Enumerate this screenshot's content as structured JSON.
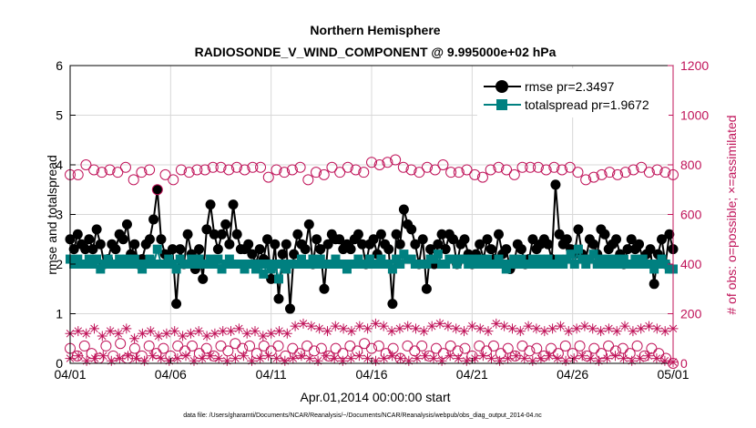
{
  "chart_data": {
    "type": "line",
    "title": "Northern Hemisphere",
    "subtitle": "RADIOSONDE_V_WIND_COMPONENT @ 9.995000e+02 hPa",
    "xlabel": "Apr.01,2014 00:00:00 start",
    "ylabel": "rmse and totalspread",
    "y2label": "# of obs: o=possible; ×=assimilated",
    "footnote": "data file: /Users/gharamti/Documents/NCAR/Reanalysis/~/Documents/NCAR/Reanalysis/webpub/obs_diag_output_2014-04.nc",
    "x_tick_labels": [
      "04/01",
      "04/06",
      "04/11",
      "04/16",
      "04/21",
      "04/26",
      "05/01"
    ],
    "x_tick_days": [
      0,
      5,
      10,
      15,
      20,
      25,
      30
    ],
    "xlim": [
      0,
      30
    ],
    "ylim": [
      0,
      6
    ],
    "y_ticks": [
      0,
      1,
      2,
      3,
      4,
      5,
      6
    ],
    "y2lim": [
      0,
      1200
    ],
    "y2_ticks": [
      0,
      200,
      400,
      600,
      800,
      1000,
      1200
    ],
    "grid": true,
    "legend_position": "top-right",
    "colors": {
      "rmse": "#000000",
      "totalspread": "#008080",
      "obs": "#c0145a",
      "axis": "#000000",
      "grid": "#d8d8d8"
    },
    "legend": [
      {
        "label": "rmse pr=2.3497",
        "marker": "circle"
      },
      {
        "label": "totalspread pr=1.9672",
        "marker": "square"
      }
    ],
    "series": [
      {
        "name": "rmse",
        "axis": "left",
        "values": [
          2.5,
          2.3,
          2.6,
          2.4,
          2.3,
          2.5,
          2.3,
          2.7,
          2.4,
          2.0,
          2.1,
          2.4,
          2.3,
          2.6,
          2.5,
          2.8,
          2.2,
          2.4,
          2.0,
          2.1,
          2.4,
          2.5,
          2.9,
          3.5,
          2.5,
          2.2,
          2.1,
          2.3,
          1.2,
          2.3,
          2.0,
          2.6,
          2.2,
          1.9,
          2.3,
          1.7,
          2.7,
          3.2,
          2.6,
          2.3,
          2.6,
          2.8,
          2.4,
          3.2,
          2.6,
          2.3,
          2.3,
          2.4,
          2.2,
          2.0,
          2.3,
          2.1,
          2.5,
          1.7,
          2.4,
          1.3,
          2.2,
          2.4,
          1.1,
          2.2,
          2.6,
          2.4,
          2.3,
          2.8,
          2.0,
          2.5,
          2.3,
          1.5,
          2.4,
          2.6,
          2.5,
          2.5,
          2.3,
          2.4,
          2.3,
          2.5,
          2.6,
          2.4,
          2.0,
          2.4,
          2.5,
          2.2,
          2.6,
          2.4,
          2.3,
          1.2,
          2.6,
          2.4,
          3.1,
          2.8,
          2.7,
          2.4,
          2.0,
          2.5,
          1.5,
          2.3,
          2.0,
          2.4,
          2.6,
          2.3,
          2.6,
          2.5,
          2.0,
          2.4,
          2.5,
          2.2,
          2.0,
          2.2,
          2.4,
          2.1,
          2.5,
          2.3,
          2.1,
          2.6,
          2.2,
          2.3,
          1.9,
          2.0,
          2.4,
          2.3,
          2.0,
          2.1,
          2.5,
          2.3,
          2.4,
          2.5,
          2.4,
          2.1,
          3.6,
          2.6,
          2.4,
          2.5,
          2.3,
          2.2,
          2.7,
          2.2,
          2.1,
          2.5,
          2.4,
          2.2,
          2.7,
          2.6,
          2.3,
          2.4,
          2.5,
          2.2,
          2.0,
          2.3,
          2.5,
          2.3,
          2.4,
          2.1,
          2.2,
          2.3,
          1.6,
          2.2,
          2.5,
          2.0,
          2.6,
          2.3
        ]
      },
      {
        "name": "totalspread",
        "axis": "left",
        "values": [
          2.1,
          2.0,
          2.1,
          2.0,
          2.0,
          2.1,
          2.0,
          2.1,
          1.9,
          2.0,
          2.1,
          2.0,
          2.0,
          2.1,
          2.0,
          2.1,
          2.0,
          2.1,
          2.0,
          1.9,
          2.0,
          2.1,
          2.0,
          2.3,
          2.0,
          2.0,
          2.1,
          2.0,
          1.9,
          2.1,
          2.0,
          2.0,
          2.1,
          2.0,
          2.1,
          2.0,
          2.0,
          2.1,
          2.0,
          2.1,
          1.9,
          2.0,
          2.1,
          2.0,
          2.0,
          2.0,
          1.9,
          2.0,
          2.0,
          1.9,
          2.0,
          1.8,
          2.0,
          1.9,
          2.0,
          1.7,
          2.0,
          1.9,
          2.0,
          2.0,
          2.0,
          2.1,
          2.0,
          2.0,
          2.1,
          2.0,
          2.1,
          2.0,
          2.0,
          2.0,
          2.1,
          2.0,
          2.0,
          1.9,
          2.0,
          2.0,
          2.1,
          2.0,
          2.0,
          2.1,
          2.0,
          2.0,
          2.1,
          2.0,
          2.0,
          1.9,
          2.1,
          2.0,
          2.2,
          2.1,
          2.1,
          2.0,
          2.0,
          2.0,
          2.0,
          2.1,
          2.1,
          2.2,
          2.0,
          2.0,
          2.1,
          2.1,
          2.0,
          2.1,
          2.1,
          2.0,
          2.1,
          2.0,
          2.1,
          2.0,
          2.1,
          2.0,
          2.0,
          2.1,
          2.0,
          1.9,
          2.0,
          2.1,
          2.0,
          2.1,
          2.0,
          2.0,
          2.1,
          2.0,
          2.1,
          2.0,
          2.1,
          2.0,
          2.0,
          2.1,
          2.0,
          2.1,
          2.2,
          2.0,
          2.3,
          2.1,
          2.0,
          2.1,
          2.2,
          2.0,
          2.1,
          2.0,
          2.1,
          2.0,
          2.1,
          2.0,
          2.1,
          2.0,
          2.0,
          2.1,
          2.0,
          2.1,
          2.0,
          2.0,
          1.9,
          2.0,
          2.1,
          2.0,
          1.9,
          1.9
        ]
      },
      {
        "name": "obs possible (set 1)",
        "axis": "right",
        "marker": "open-circle",
        "values": [
          760,
          760,
          800,
          780,
          770,
          780,
          770,
          790,
          740,
          770,
          780,
          700,
          760,
          740,
          780,
          770,
          780,
          780,
          790,
          790,
          780,
          790,
          780,
          790,
          790,
          750,
          780,
          770,
          780,
          790,
          740,
          770,
          760,
          790,
          770,
          790,
          780,
          770,
          810,
          800,
          810,
          820,
          790,
          780,
          770,
          790,
          780,
          800,
          770,
          770,
          780,
          760,
          750,
          780,
          790,
          780,
          760,
          790,
          790,
          790,
          780,
          790,
          780,
          790,
          770,
          740,
          750,
          760,
          770,
          760,
          770,
          780,
          790,
          770,
          780,
          770,
          760
        ]
      },
      {
        "name": "obs possible (set 2)",
        "axis": "right",
        "marker": "open-circle",
        "values": [
          60,
          30,
          70,
          40,
          20,
          70,
          30,
          80,
          20,
          60,
          30,
          70,
          40,
          60,
          30,
          70,
          50,
          70,
          40,
          60,
          30,
          70,
          50,
          80,
          60,
          70,
          40,
          70,
          50,
          70,
          30,
          60,
          40,
          70,
          50,
          60,
          30,
          60,
          40,
          70,
          50,
          80,
          60,
          70,
          40,
          60,
          20,
          70,
          50,
          70,
          30,
          60,
          40,
          70,
          50,
          60,
          30,
          70,
          50,
          70,
          40,
          60,
          30,
          70,
          50,
          60,
          30,
          60,
          40,
          70,
          40,
          70,
          30,
          60,
          40,
          70,
          50,
          60,
          40,
          70,
          30,
          60,
          40,
          20,
          0
        ]
      },
      {
        "name": "obs assimilated (set 1)",
        "axis": "right",
        "marker": "asterisk",
        "values": [
          120,
          130,
          120,
          140,
          110,
          130,
          120,
          140,
          100,
          120,
          130,
          110,
          120,
          130,
          110,
          120,
          130,
          110,
          120,
          130,
          130,
          140,
          120,
          130,
          110,
          120,
          130,
          120,
          150,
          160,
          150,
          140,
          130,
          150,
          140,
          130,
          150,
          140,
          160,
          150,
          130,
          140,
          150,
          140,
          130,
          150,
          160,
          150,
          140,
          130,
          150,
          140,
          130,
          160,
          150,
          140,
          130,
          150,
          140,
          130,
          140,
          150,
          130,
          140,
          150,
          140,
          130,
          140,
          130,
          150,
          130,
          140,
          150,
          140,
          130,
          140
        ]
      },
      {
        "name": "obs assimilated (set 2)",
        "axis": "right",
        "marker": "asterisk",
        "values": [
          20,
          30,
          10,
          20,
          30,
          10,
          20,
          30,
          20,
          10,
          30,
          20,
          10,
          20,
          30,
          10,
          20,
          30,
          20,
          10,
          20,
          30,
          10,
          20,
          30,
          20,
          10,
          20,
          30,
          20,
          10,
          30,
          20,
          10,
          20,
          30,
          20,
          10,
          20,
          30,
          20,
          10,
          20,
          30,
          20,
          10,
          30,
          20,
          10,
          20,
          30,
          20,
          10,
          20,
          30,
          20,
          10,
          20,
          30,
          20,
          10,
          20,
          30,
          20,
          10,
          20,
          30,
          20,
          10,
          20,
          30,
          20,
          10,
          5
        ]
      }
    ]
  }
}
